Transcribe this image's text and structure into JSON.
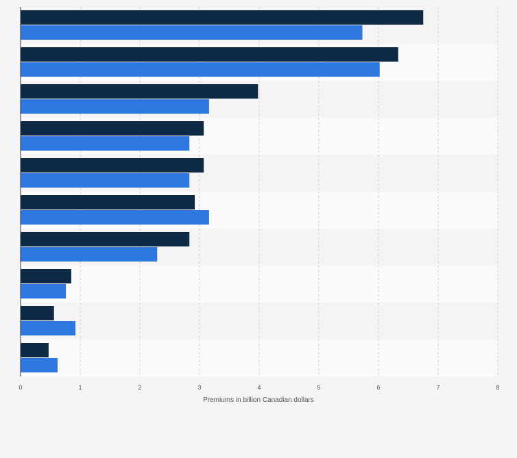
{
  "chart_data": {
    "type": "bar",
    "orientation": "horizontal",
    "title": "",
    "xlabel": "Premiums in billion Canadian dollars",
    "ylabel": "",
    "xlim": [
      0,
      8
    ],
    "x_ticks": [
      "0",
      "1",
      "2",
      "3",
      "4",
      "5",
      "6",
      "7",
      "8"
    ],
    "categories": [
      "",
      "",
      "",
      "",
      "",
      "",
      "",
      "",
      "",
      ""
    ],
    "series": [
      {
        "color": "#0f2a45",
        "values": [
          6.75,
          6.33,
          3.98,
          3.07,
          3.07,
          2.92,
          2.83,
          0.85,
          0.56,
          0.47
        ]
      },
      {
        "color": "#2c77e0",
        "values": [
          5.73,
          6.02,
          3.16,
          2.83,
          2.83,
          3.16,
          2.29,
          0.76,
          0.92,
          0.62
        ]
      }
    ],
    "grid": true,
    "legend": "none"
  }
}
